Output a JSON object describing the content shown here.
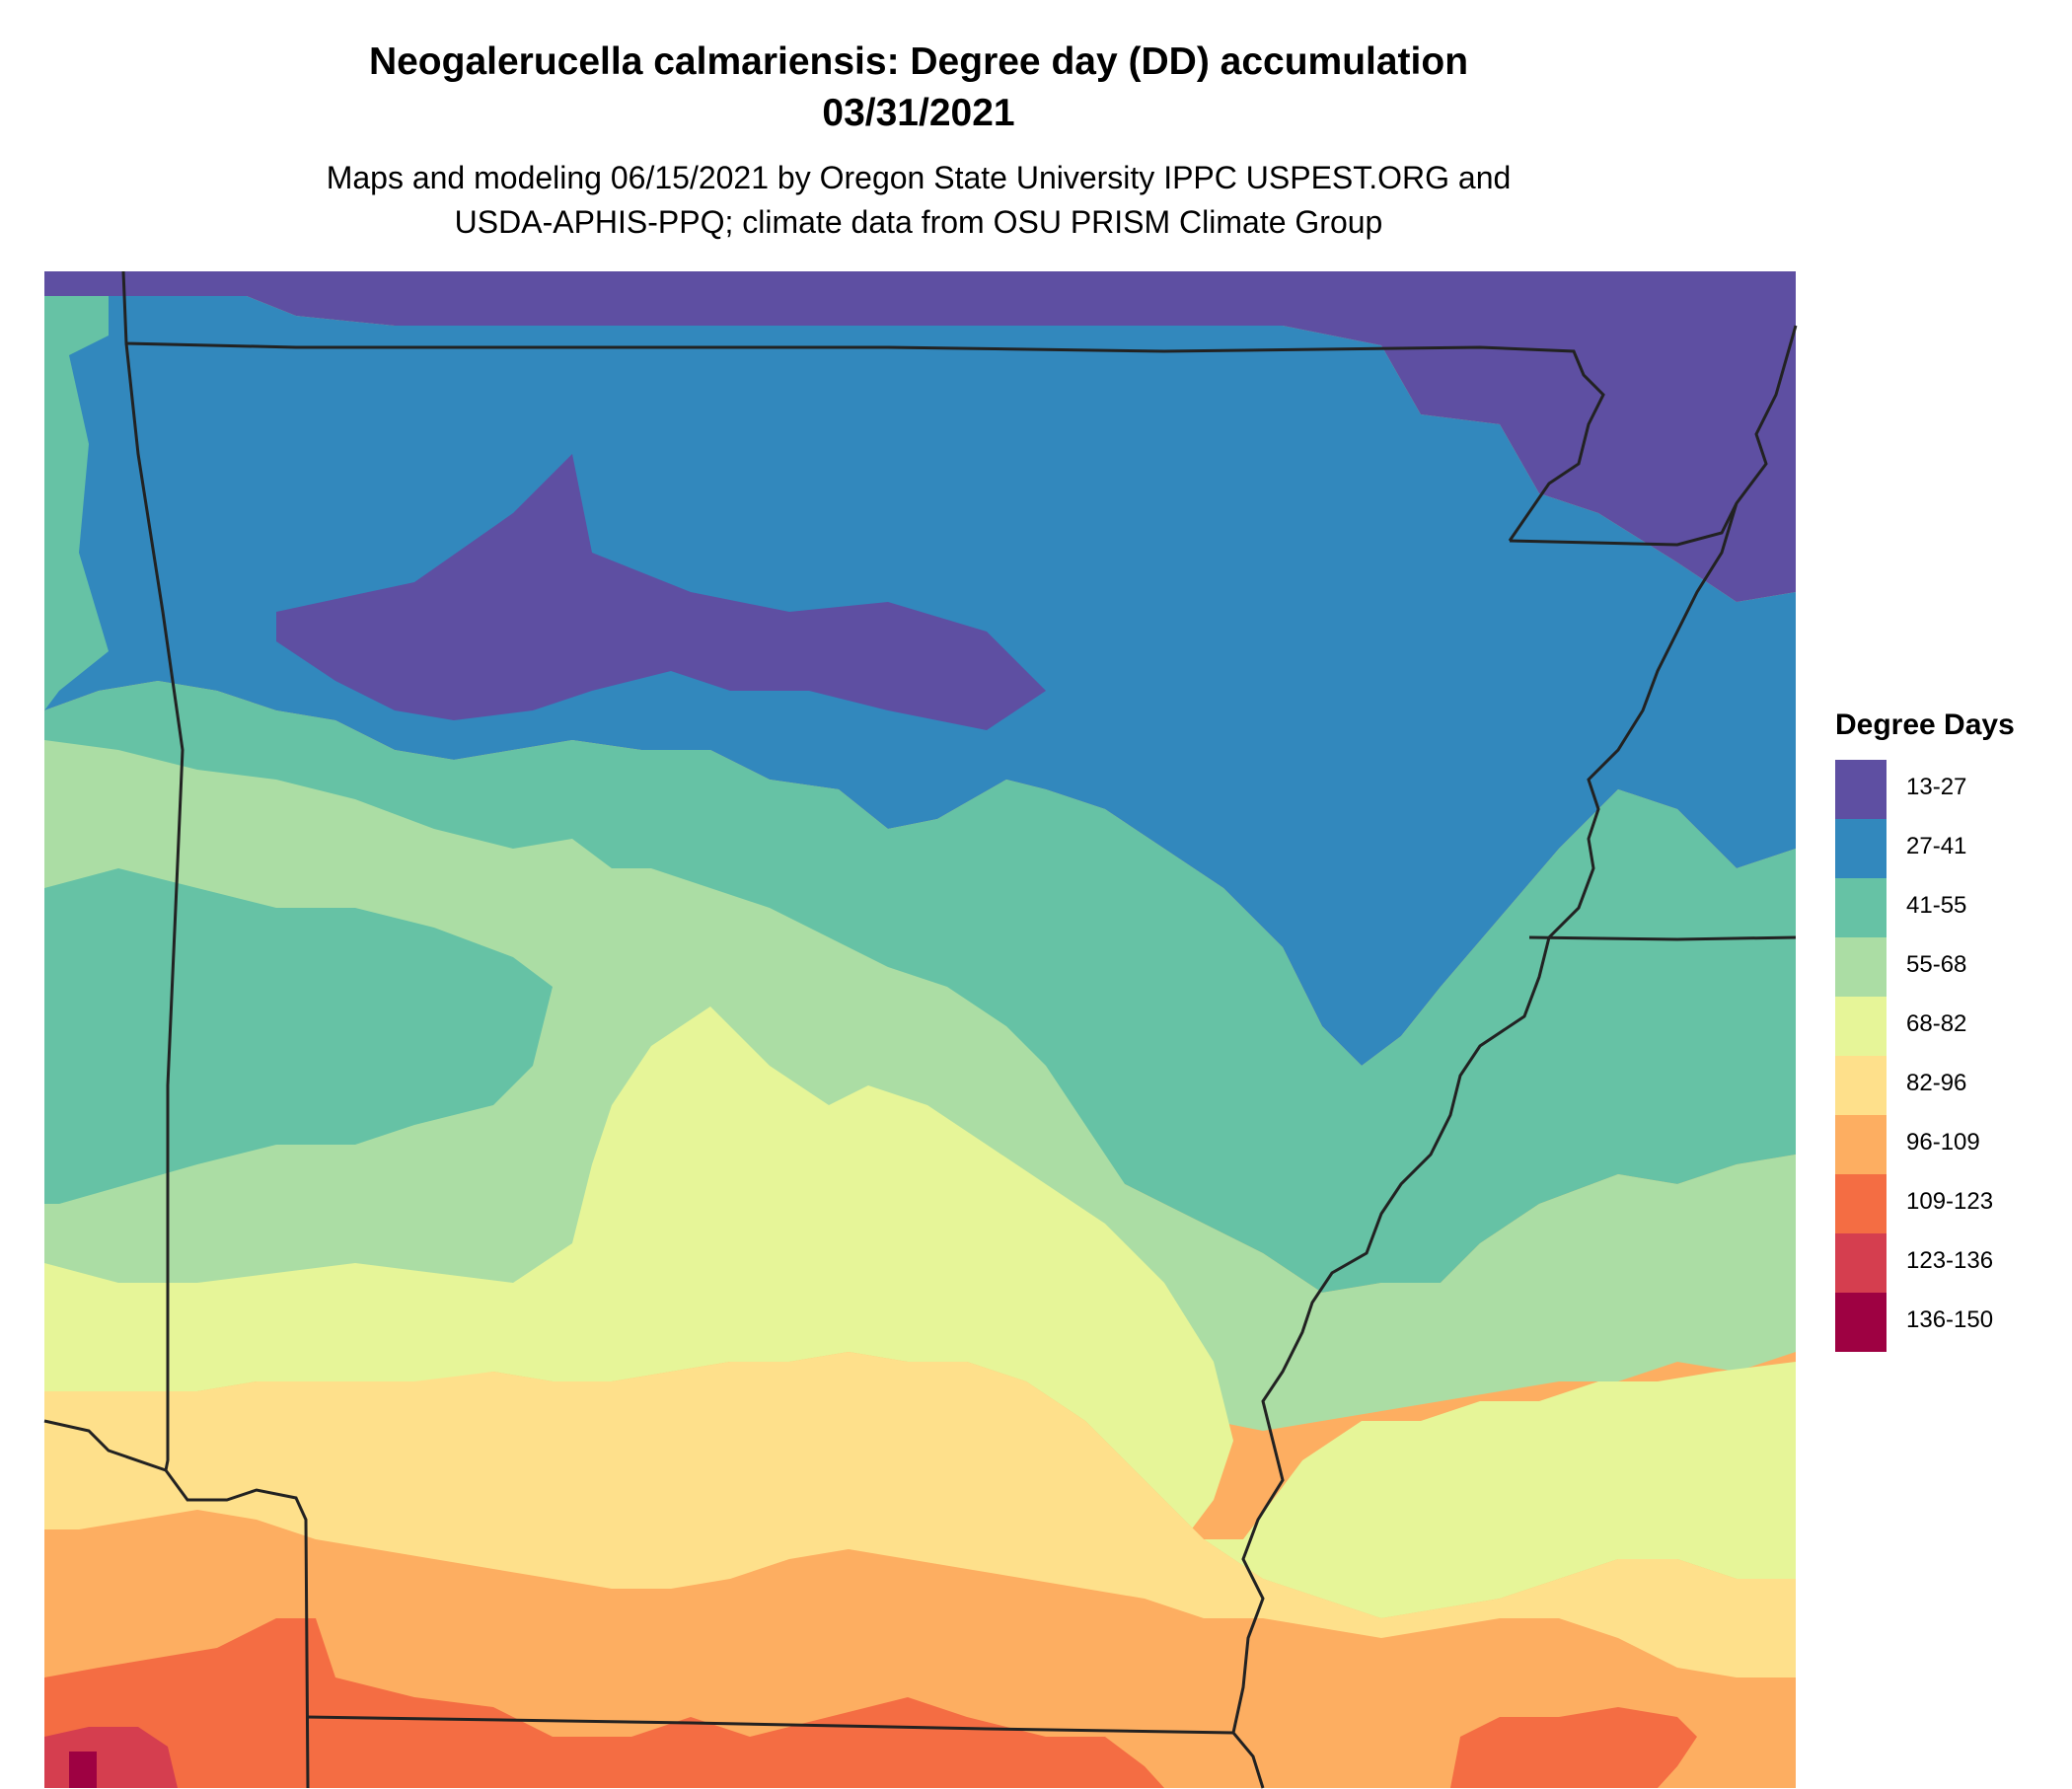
{
  "title_line1": "Neogalerucella calmariensis: Degree day (DD) accumulation",
  "title_line2": "03/31/2021",
  "subtitle_line1": "Maps and modeling 06/15/2021 by Oregon State University IPPC USPEST.ORG and",
  "subtitle_line2": "USDA-APHIS-PPQ; climate data from OSU PRISM Climate Group",
  "legend": {
    "title": "Degree Days",
    "items": [
      {
        "label": "13-27",
        "color": "#5e4fa2"
      },
      {
        "label": "27-41",
        "color": "#3288bd"
      },
      {
        "label": "41-55",
        "color": "#66c2a5"
      },
      {
        "label": "55-68",
        "color": "#abdda4"
      },
      {
        "label": "68-82",
        "color": "#e6f598"
      },
      {
        "label": "82-96",
        "color": "#fee08b"
      },
      {
        "label": "96-109",
        "color": "#fdae61"
      },
      {
        "label": "109-123",
        "color": "#f46d43"
      },
      {
        "label": "123-136",
        "color": "#d53e4f"
      },
      {
        "label": "136-150",
        "color": "#9e0142"
      }
    ]
  }
}
